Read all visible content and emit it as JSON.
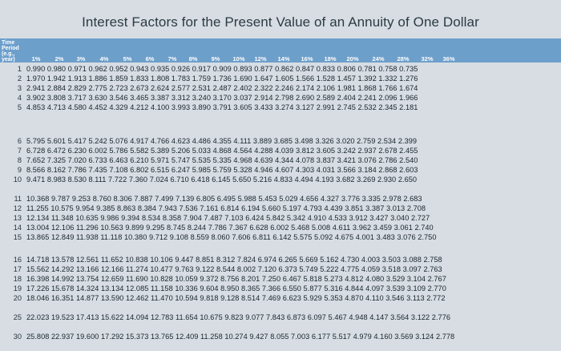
{
  "title": "Interest Factors for the Present Value of an Annuity of One Dollar",
  "period_label": [
    "Time",
    "Period",
    "(e.g.,",
    "year)"
  ],
  "columns": [
    "1%",
    "2%",
    "3%",
    "4%",
    "5%",
    "6%",
    "7%",
    "8%",
    "9%",
    "10%",
    "12%",
    "14%",
    "16%",
    "18%",
    "20%",
    "24%",
    "28%",
    "32%",
    "36%"
  ],
  "rows": [
    {
      "n": "1",
      "values": "0.990 0.980 0.971 0.962 0.952 0.943 0.935 0.926 0.917 0.909 0.893 0.877 0.862 0.847 0.833 0.806 0.781 0.758 0.735"
    },
    {
      "n": "2",
      "values": "1.970 1.942 1.913 1.886 1.859 1.833 1.808 1.783 1.759 1.736 1.690 1.647 1.605 1.566 1.528 1.457 1.392 1.332 1.276"
    },
    {
      "n": "3",
      "values": "2.941 2.884 2.829 2.775 2.723 2.673 2.624 2.577 2.531 2.487 2.402 2.322 2.246 2.174 2.106 1.981 1.868 1.766 1.674"
    },
    {
      "n": "4",
      "values": "3.902 3.808 3.717 3.630 3.546 3.465 3.387 3.312 3.240 3.170 3.037 2.914 2.798 2.690 2.589 2.404 2.241 2.096 1.966"
    },
    {
      "n": "5",
      "values": "4.853 4.713 4.580 4.452 4.329 4.212 4.100 3.993 3.890 3.791 3.605 3.433 3.274 3.127 2.991 2.745 2.532 2.345 2.181"
    },
    {
      "n": "6",
      "values": "5.795 5.601 5.417 5.242 5.076 4.917 4.766 4.623 4.486 4.355 4.111 3.889 3.685 3.498 3.326 3.020 2.759 2.534 2.399"
    },
    {
      "n": "7",
      "values": "6.728 6.472 6.230 6.002 5.786 5.582 5.389 5.206 5.033 4.868 4.564 4.288 4.039 3.812 3.605 3.242 2.937 2.678 2.455"
    },
    {
      "n": "8",
      "values": "7.652 7.325 7.020 6.733 6.463 6.210 5.971 5.747 5.535 5.335 4.968 4.639 4.344 4.078 3.837 3.421 3.076 2.786 2.540"
    },
    {
      "n": "9",
      "values": "8.566 8.162 7.786 7.435 7.108 6.802 6.515 6.247 5.985 5.759 5.328 4.946 4.607 4.303 4.031 3.566 3.184 2.868 2.603"
    },
    {
      "n": "10",
      "values": "9.471 8.983 8.530 8.111 7.722 7.360 7.024 6.710 6.418 6.145 5.650 5.216 4.833 4.494 4.193 3.682 3.269 2.930 2.650"
    },
    {
      "n": "11",
      "values": "10.368 9.787 9.253 8.760 8.306 7.887 7.499 7.139 6.805 6.495 5.988 5.453 5.029 4.656 4.327 3.776 3.335 2.978 2.683"
    },
    {
      "n": "12",
      "values": "11.255 10.575 9.954 9.385 8.863 8.384 7.943 7.536 7.161 6.814 6.194 5.660 5.197 4.793 4.439 3.851 3.387 3.013 2.708"
    },
    {
      "n": "13",
      "values": "12.134 11.348 10.635 9.986 9.394 8.534 8.358 7.904 7.487 7.103 6.424 5.842 5.342 4.910 4.533 3.912 3.427 3.040 2.727"
    },
    {
      "n": "14",
      "values": "13.004 12.106 11.296 10.563 9.899 9.295 8.745 8.244 7.786 7.367 6.628 6.002 5.468 5.008 4.611 3.962 3.459 3.061 2.740"
    },
    {
      "n": "15",
      "values": "13.865 12.849 11.938 11.118 10.380 9.712 9.108 8.559 8.060 7.606 6.811 6.142 5.575 5.092 4.675 4.001 3.483 3.076 2.750"
    },
    {
      "n": "16",
      "values": "14.718 13.578 12.561 11.652 10.838 10.106 9.447 8.851 8.312 7.824 6.974 6.265 5.669 5.162 4.730 4.003 3.503 3.088 2.758"
    },
    {
      "n": "17",
      "values": "15.562 14.292 13.166 12.166 11.274 10.477 9.763 9.122 8.544 8.002 7.120 6.373 5.749 5.222 4.775 4.059 3.518 3.097 2.763"
    },
    {
      "n": "18",
      "values": "16.398 14.992 13.754 12.659 11.690 10.828 10.059 9.372 8.756 8.201 7.250 6.467 5.818 5.273 4.812 4.080 3.529 3.104 2.767"
    },
    {
      "n": "19",
      "values": "17.226 15.678 14.324 13.134 12.085 11.158 10.336 9.604 8.950 8.365 7.366 6.550 5.877 5.316 4.844 4.097 3.539 3.109 2.770"
    },
    {
      "n": "20",
      "values": "18.046 16.351 14.877 13.590 12.462 11.470 10.594 9.818 9.128 8.514 7.469 6.623 5.929 5.353 4.870 4.110 3.546 3.113 2.772"
    },
    {
      "n": "25",
      "values": "22.023 19.523 17.413 15.622 14.094 12.783 11.654 10.675 9.823 9.077 7.843 6.873 6.097 5.467 4.948 4.147 3.564 3.122 2.776"
    },
    {
      "n": "30",
      "values": "25.808 22.937 19.600 17.292 15.373 13.765 12.409 11.258 10.274 9.427 8.055 7.003 6.177 5.517 4.979 4.160 3.569 3.124 2.778"
    }
  ]
}
